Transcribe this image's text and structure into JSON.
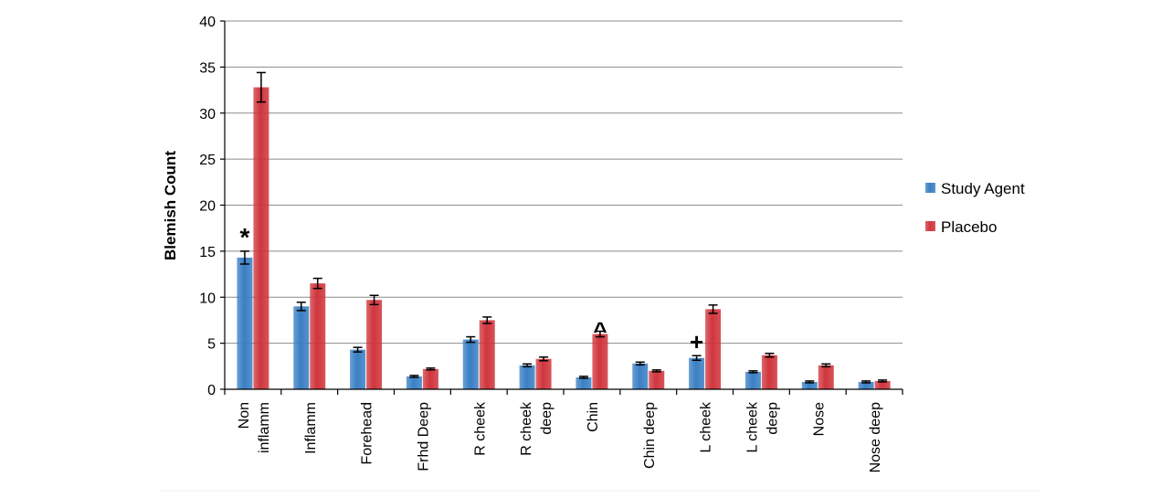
{
  "chart_data": {
    "type": "bar",
    "title": "",
    "xlabel": "",
    "ylabel": "Blemish Count",
    "ylim": [
      0,
      40
    ],
    "yticks": [
      0,
      5,
      10,
      15,
      20,
      25,
      30,
      35,
      40
    ],
    "grid": true,
    "legend_position": "right",
    "categories": [
      [
        "Non",
        "inflamm"
      ],
      [
        "Inflamm"
      ],
      [
        "Forehead"
      ],
      [
        "Frhd Deep"
      ],
      [
        "R cheek"
      ],
      [
        "R cheek",
        "deep"
      ],
      [
        "Chin"
      ],
      [
        "Chin deep"
      ],
      [
        "L cheek"
      ],
      [
        "L cheek",
        "deep"
      ],
      [
        "Nose"
      ],
      [
        "Nose deep"
      ]
    ],
    "series": [
      {
        "name": "Study Agent",
        "color": "#3a7fc4",
        "values": [
          14.3,
          9.0,
          4.3,
          1.4,
          5.4,
          2.6,
          1.3,
          2.8,
          3.4,
          1.9,
          0.8,
          0.8
        ],
        "errors": [
          0.7,
          0.45,
          0.25,
          0.1,
          0.3,
          0.15,
          0.1,
          0.15,
          0.25,
          0.1,
          0.1,
          0.1
        ]
      },
      {
        "name": "Placebo",
        "color": "#d0353d",
        "values": [
          32.8,
          11.5,
          9.7,
          2.2,
          7.5,
          3.3,
          6.0,
          2.0,
          8.7,
          3.7,
          2.6,
          0.9
        ],
        "errors": [
          1.6,
          0.55,
          0.5,
          0.1,
          0.35,
          0.2,
          0.3,
          0.1,
          0.45,
          0.2,
          0.15,
          0.1
        ]
      }
    ],
    "annotations": [
      {
        "text": "*",
        "category_index": 0,
        "series_index": 0
      },
      {
        "text": "^",
        "category_index": 6,
        "series_index": 1
      },
      {
        "text": "+",
        "category_index": 8,
        "series_index": 0
      }
    ]
  }
}
